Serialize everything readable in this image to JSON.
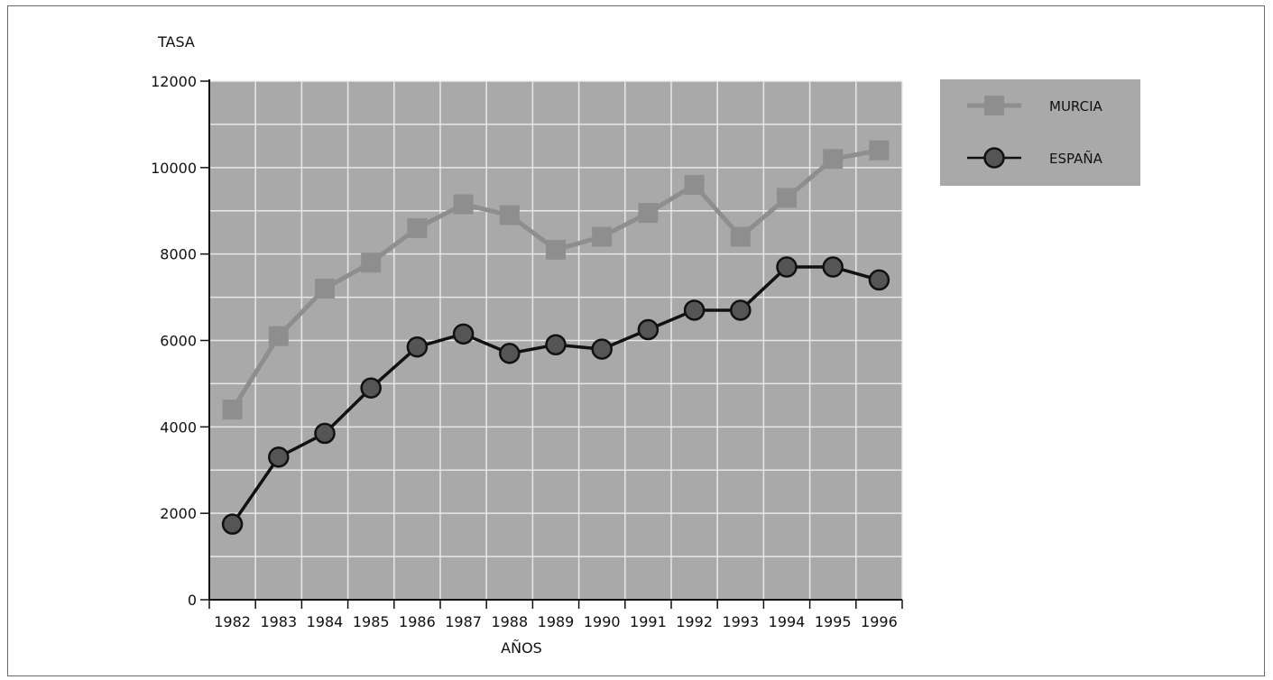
{
  "chart_data": {
    "type": "line",
    "ylabel": "TASA",
    "xlabel": "AÑOS",
    "ylim": [
      0,
      12000
    ],
    "yticks": [
      0,
      2000,
      4000,
      6000,
      8000,
      10000,
      12000
    ],
    "categories": [
      "1982",
      "1983",
      "1984",
      "1985",
      "1986",
      "1987",
      "1988",
      "1989",
      "1990",
      "1991",
      "1992",
      "1993",
      "1994",
      "1995",
      "1996"
    ],
    "grid": true,
    "legend_position": "top-right",
    "series": [
      {
        "name": "MURCIA",
        "marker": "square",
        "color": "#8e8e8e",
        "values": [
          4400,
          6100,
          7200,
          7800,
          8600,
          9150,
          8900,
          8100,
          8400,
          8950,
          9600,
          8400,
          9300,
          10200,
          10400
        ]
      },
      {
        "name": "ESPAÑA",
        "marker": "circle",
        "color": "#111111",
        "values": [
          1750,
          3300,
          3850,
          4900,
          5850,
          6150,
          5700,
          5900,
          5800,
          6250,
          6700,
          6700,
          7700,
          7700,
          7400
        ]
      }
    ]
  },
  "colors": {
    "plot_background": "#a9a9a9",
    "grid": "#e8e8e8",
    "axis": "#111111",
    "legend_background": "#a9a9a9"
  }
}
